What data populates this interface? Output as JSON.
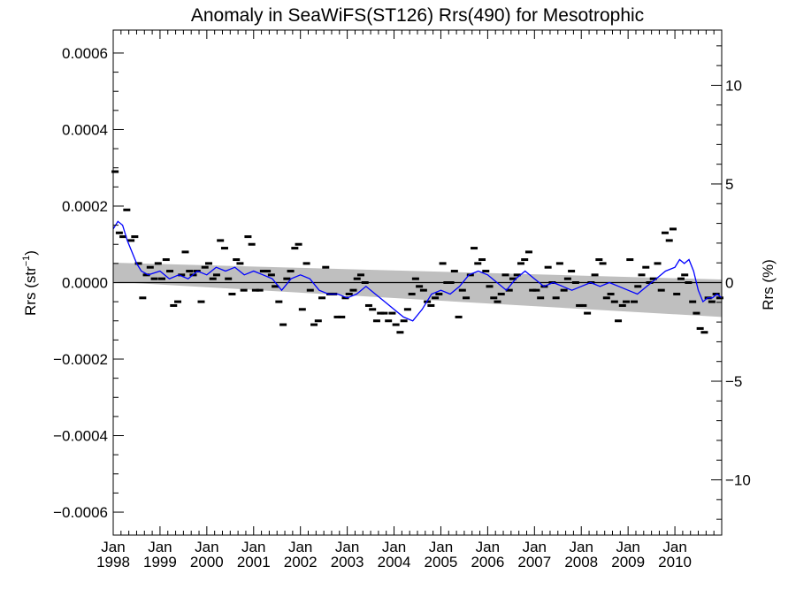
{
  "chart_data": {
    "type": "scatter",
    "title": "Anomaly in SeaWiFS(ST126) Rrs(490) for Mesotrophic",
    "ylabel_left": "Rrs (str",
    "ylabel_left_sup": "−1",
    "ylabel_left_end": ")",
    "ylabel_right": "Rrs (%)",
    "x_range": [
      1998.0,
      2011.0
    ],
    "ylim_left": [
      -0.00066,
      0.00066
    ],
    "ylim_right": [
      -12.8,
      12.8
    ],
    "x_ticks": [
      {
        "year": 1998,
        "month": "Jan",
        "label": "1998"
      },
      {
        "year": 1999,
        "month": "Jan",
        "label": "1999"
      },
      {
        "year": 2000,
        "month": "Jan",
        "label": "2000"
      },
      {
        "year": 2001,
        "month": "Jan",
        "label": "2001"
      },
      {
        "year": 2002,
        "month": "Jan",
        "label": "2002"
      },
      {
        "year": 2003,
        "month": "Jan",
        "label": "2003"
      },
      {
        "year": 2004,
        "month": "Jan",
        "label": "2004"
      },
      {
        "year": 2005,
        "month": "Jan",
        "label": "2005"
      },
      {
        "year": 2006,
        "month": "Jan",
        "label": "2006"
      },
      {
        "year": 2007,
        "month": "Jan",
        "label": "2007"
      },
      {
        "year": 2008,
        "month": "Jan",
        "label": "2008"
      },
      {
        "year": 2009,
        "month": "Jan",
        "label": "2009"
      },
      {
        "year": 2010,
        "month": "Jan",
        "label": "2010"
      }
    ],
    "y_ticks_left": [
      {
        "value": 0.0006,
        "label": "0.0006"
      },
      {
        "value": 0.0004,
        "label": "0.0004"
      },
      {
        "value": 0.0002,
        "label": "0.0002"
      },
      {
        "value": 0.0,
        "label": "0.0000"
      },
      {
        "value": -0.0002,
        "label": "−0.0002"
      },
      {
        "value": -0.0004,
        "label": "−0.0004"
      },
      {
        "value": -0.0006,
        "label": "−0.0006"
      }
    ],
    "y_ticks_right": [
      {
        "value": 10,
        "label": "10"
      },
      {
        "value": 5,
        "label": "5"
      },
      {
        "value": 0,
        "label": "0"
      },
      {
        "value": -5,
        "label": "−5"
      },
      {
        "value": -10,
        "label": "−10"
      }
    ],
    "zero_line": 0.0,
    "trend_band": {
      "x": [
        1998.0,
        2011.0
      ],
      "upper": [
        5.2e-05,
        8e-06
      ],
      "lower": [
        2e-06,
        -9e-05
      ]
    },
    "colors": {
      "running_mean": "#0000ff",
      "band": "#bfbfbf",
      "points": "#000000"
    },
    "series": [
      {
        "marker": "dash",
        "x": [
          1998.04,
          1998.13,
          1998.21,
          1998.29,
          1998.38,
          1998.46,
          1998.54,
          1998.63,
          1998.71,
          1998.79,
          1998.88,
          1998.96,
          1999.04,
          1999.13,
          1999.21,
          1999.29,
          1999.38,
          1999.46,
          1999.54,
          1999.63,
          1999.71,
          1999.79,
          1999.88,
          1999.96,
          2000.04,
          2000.13,
          2000.21,
          2000.29,
          2000.38,
          2000.46,
          2000.54,
          2000.63,
          2000.71,
          2000.79,
          2000.88,
          2000.96,
          2001.04,
          2001.13,
          2001.21,
          2001.29,
          2001.38,
          2001.46,
          2001.54,
          2001.63,
          2001.71,
          2001.79,
          2001.88,
          2001.96,
          2002.04,
          2002.13,
          2002.21,
          2002.29,
          2002.38,
          2002.46,
          2002.54,
          2002.63,
          2002.71,
          2002.79,
          2002.88,
          2002.96,
          2003.04,
          2003.13,
          2003.21,
          2003.29,
          2003.38,
          2003.46,
          2003.54,
          2003.63,
          2003.71,
          2003.79,
          2003.88,
          2003.96,
          2004.04,
          2004.13,
          2004.21,
          2004.29,
          2004.38,
          2004.46,
          2004.54,
          2004.63,
          2004.71,
          2004.79,
          2004.88,
          2004.96,
          2005.04,
          2005.13,
          2005.21,
          2005.29,
          2005.38,
          2005.46,
          2005.54,
          2005.63,
          2005.71,
          2005.79,
          2005.88,
          2005.96,
          2006.04,
          2006.13,
          2006.21,
          2006.29,
          2006.38,
          2006.46,
          2006.54,
          2006.63,
          2006.71,
          2006.79,
          2006.88,
          2006.96,
          2007.04,
          2007.13,
          2007.21,
          2007.29,
          2007.38,
          2007.46,
          2007.54,
          2007.63,
          2007.71,
          2007.79,
          2007.88,
          2007.96,
          2008.04,
          2008.13,
          2008.21,
          2008.29,
          2008.38,
          2008.46,
          2008.54,
          2008.63,
          2008.71,
          2008.79,
          2008.88,
          2008.96,
          2009.04,
          2009.13,
          2009.21,
          2009.29,
          2009.38,
          2009.46,
          2009.54,
          2009.63,
          2009.71,
          2009.79,
          2009.88,
          2009.96,
          2010.04,
          2010.13,
          2010.21,
          2010.29,
          2010.38,
          2010.46,
          2010.54,
          2010.63,
          2010.71,
          2010.79,
          2010.88,
          2010.96
        ],
        "y": [
          0.00029,
          0.00013,
          0.00012,
          0.00019,
          0.00011,
          0.00012,
          5e-05,
          -4e-05,
          2e-05,
          4e-05,
          1e-05,
          5e-05,
          1e-05,
          6e-05,
          3e-05,
          -6e-05,
          -5e-05,
          2e-05,
          8e-05,
          3e-05,
          2e-05,
          3e-05,
          -5e-05,
          4e-05,
          5e-05,
          1e-05,
          2e-05,
          0.00011,
          9e-05,
          1e-05,
          -3e-05,
          6e-05,
          5e-05,
          -2e-05,
          0.00012,
          0.0001,
          -2e-05,
          -2e-05,
          3e-05,
          3e-05,
          2e-05,
          -1e-05,
          -5e-05,
          -0.00011,
          1e-05,
          3e-05,
          9e-05,
          0.0001,
          -7e-05,
          5e-05,
          -2e-05,
          -0.00011,
          -0.0001,
          -4e-05,
          4e-05,
          -3e-05,
          -3e-05,
          -9e-05,
          -9e-05,
          -4e-05,
          -3e-05,
          -2e-05,
          1e-05,
          2e-05,
          0.0,
          -6e-05,
          -7e-05,
          -0.0001,
          -8e-05,
          -8e-05,
          -0.0001,
          -8e-05,
          -0.00011,
          -0.00013,
          -0.0001,
          -7e-05,
          -3e-05,
          1e-05,
          -1e-05,
          -2e-05,
          -5e-05,
          -6e-05,
          -4e-05,
          -3e-05,
          5e-05,
          0.0,
          0.0,
          3e-05,
          -9e-05,
          -2e-05,
          -4e-05,
          2e-05,
          9e-05,
          5e-05,
          6e-05,
          3e-05,
          -1e-05,
          -4e-05,
          -5e-05,
          -3e-05,
          2e-05,
          -2e-05,
          1e-05,
          2e-05,
          5e-05,
          6e-05,
          8e-05,
          -2e-05,
          -2e-05,
          -4e-05,
          -1e-05,
          4e-05,
          0.0,
          -4e-05,
          5e-05,
          -2e-05,
          1e-05,
          3e-05,
          0.0,
          -6e-05,
          -6e-05,
          -8e-05,
          0.0,
          2e-05,
          6e-05,
          5e-05,
          -4e-05,
          -3e-05,
          -5e-05,
          -0.0001,
          -6e-05,
          -5e-05,
          6e-05,
          -5e-05,
          -1e-05,
          2e-05,
          4e-05,
          0.0,
          1e-05,
          5e-05,
          -2e-05,
          0.00013,
          0.00011,
          0.00014,
          -3e-05,
          1e-05,
          2e-05,
          0.0,
          -5e-05,
          -8e-05,
          -0.00012,
          -0.00013,
          -4e-05,
          -5e-05,
          -3e-05,
          -4e-05
        ]
      },
      {
        "marker": "line",
        "x": [
          1998.0,
          1998.1,
          1998.2,
          1998.3,
          1998.4,
          1998.5,
          1998.6,
          1998.75,
          1999.0,
          1999.2,
          1999.4,
          1999.6,
          1999.8,
          2000.0,
          2000.2,
          2000.4,
          2000.6,
          2000.8,
          2001.0,
          2001.2,
          2001.4,
          2001.6,
          2001.8,
          2002.0,
          2002.2,
          2002.4,
          2002.6,
          2002.8,
          2003.0,
          2003.2,
          2003.4,
          2003.6,
          2003.8,
          2004.0,
          2004.2,
          2004.4,
          2004.6,
          2004.8,
          2005.0,
          2005.2,
          2005.4,
          2005.6,
          2005.8,
          2006.0,
          2006.2,
          2006.4,
          2006.6,
          2006.8,
          2007.0,
          2007.2,
          2007.4,
          2007.6,
          2007.8,
          2008.0,
          2008.2,
          2008.4,
          2008.6,
          2008.8,
          2009.0,
          2009.2,
          2009.4,
          2009.6,
          2009.8,
          2010.0,
          2010.1,
          2010.2,
          2010.3,
          2010.4,
          2010.5,
          2010.6,
          2010.7,
          2010.8,
          2010.9,
          2011.0
        ],
        "y": [
          0.00014,
          0.00016,
          0.00015,
          0.00011,
          8e-05,
          5e-05,
          3e-05,
          2e-05,
          3e-05,
          1e-05,
          2e-05,
          1e-05,
          3e-05,
          2e-05,
          4e-05,
          3e-05,
          4e-05,
          2e-05,
          3e-05,
          2e-05,
          1e-05,
          -2e-05,
          1e-05,
          2e-05,
          1e-05,
          -2e-05,
          -3e-05,
          -3e-05,
          -4e-05,
          -3e-05,
          -1e-05,
          -3e-05,
          -5e-05,
          -7e-05,
          -9e-05,
          -0.0001,
          -7e-05,
          -3e-05,
          -2e-05,
          -3e-05,
          -1e-05,
          2e-05,
          3e-05,
          2e-05,
          0.0,
          -2e-05,
          1e-05,
          3e-05,
          1e-05,
          -1e-05,
          0.0,
          -1e-05,
          -2e-05,
          -1e-05,
          0.0,
          -1e-05,
          0.0,
          -1e-05,
          -2e-05,
          -3e-05,
          -1e-05,
          1e-05,
          3e-05,
          4e-05,
          6e-05,
          5e-05,
          6e-05,
          3e-05,
          -2e-05,
          -5e-05,
          -4e-05,
          -4e-05,
          -3e-05,
          -4e-05
        ]
      }
    ]
  }
}
